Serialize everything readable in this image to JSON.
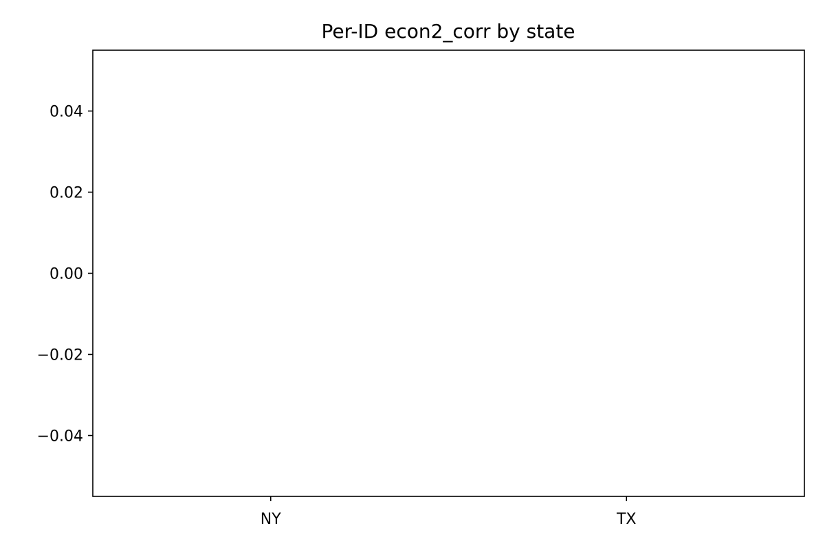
{
  "chart_data": {
    "type": "box",
    "title": "Per-ID econ2_corr by state",
    "xlabel": "",
    "ylabel": "",
    "categories": [
      "NY",
      "TX"
    ],
    "values": [
      [],
      []
    ],
    "ylim": [
      -0.055,
      0.055
    ],
    "yticks": [
      -0.04,
      -0.02,
      0.0,
      0.02,
      0.04
    ],
    "ytick_labels": [
      "−0.04",
      "−0.02",
      "0.00",
      "0.02",
      "0.04"
    ],
    "grid": false,
    "legend": null
  }
}
